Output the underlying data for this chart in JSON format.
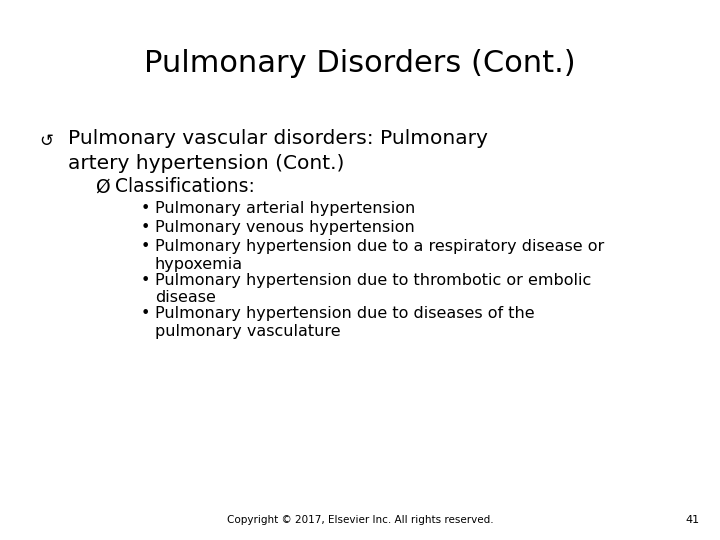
{
  "title": "Pulmonary Disorders (Cont.)",
  "background_color": "#ffffff",
  "text_color": "#000000",
  "title_fontsize": 22,
  "footer_text": "Copyright © 2017, Elsevier Inc. All rights reserved.",
  "footer_number": "41",
  "main_bullet_symbol": "↺",
  "main_text_line1": "Pulmonary vascular disorders: Pulmonary",
  "main_text_line2": "artery hypertension (Cont.)",
  "sub_bullet_symbol": "Ø",
  "sub_bullet_text": "Classifications:",
  "items": [
    "Pulmonary arterial hypertension",
    "Pulmonary venous hypertension",
    "Pulmonary hypertension due to a respiratory disease or\nhypoxemia",
    "Pulmonary hypertension due to thrombotic or embolic\ndisease",
    "Pulmonary hypertension due to diseases of the\npulmonary vasculature"
  ],
  "main_fontsize": 14.5,
  "sub_fontsize": 13.5,
  "item_fontsize": 11.5,
  "footer_fontsize": 7.5
}
